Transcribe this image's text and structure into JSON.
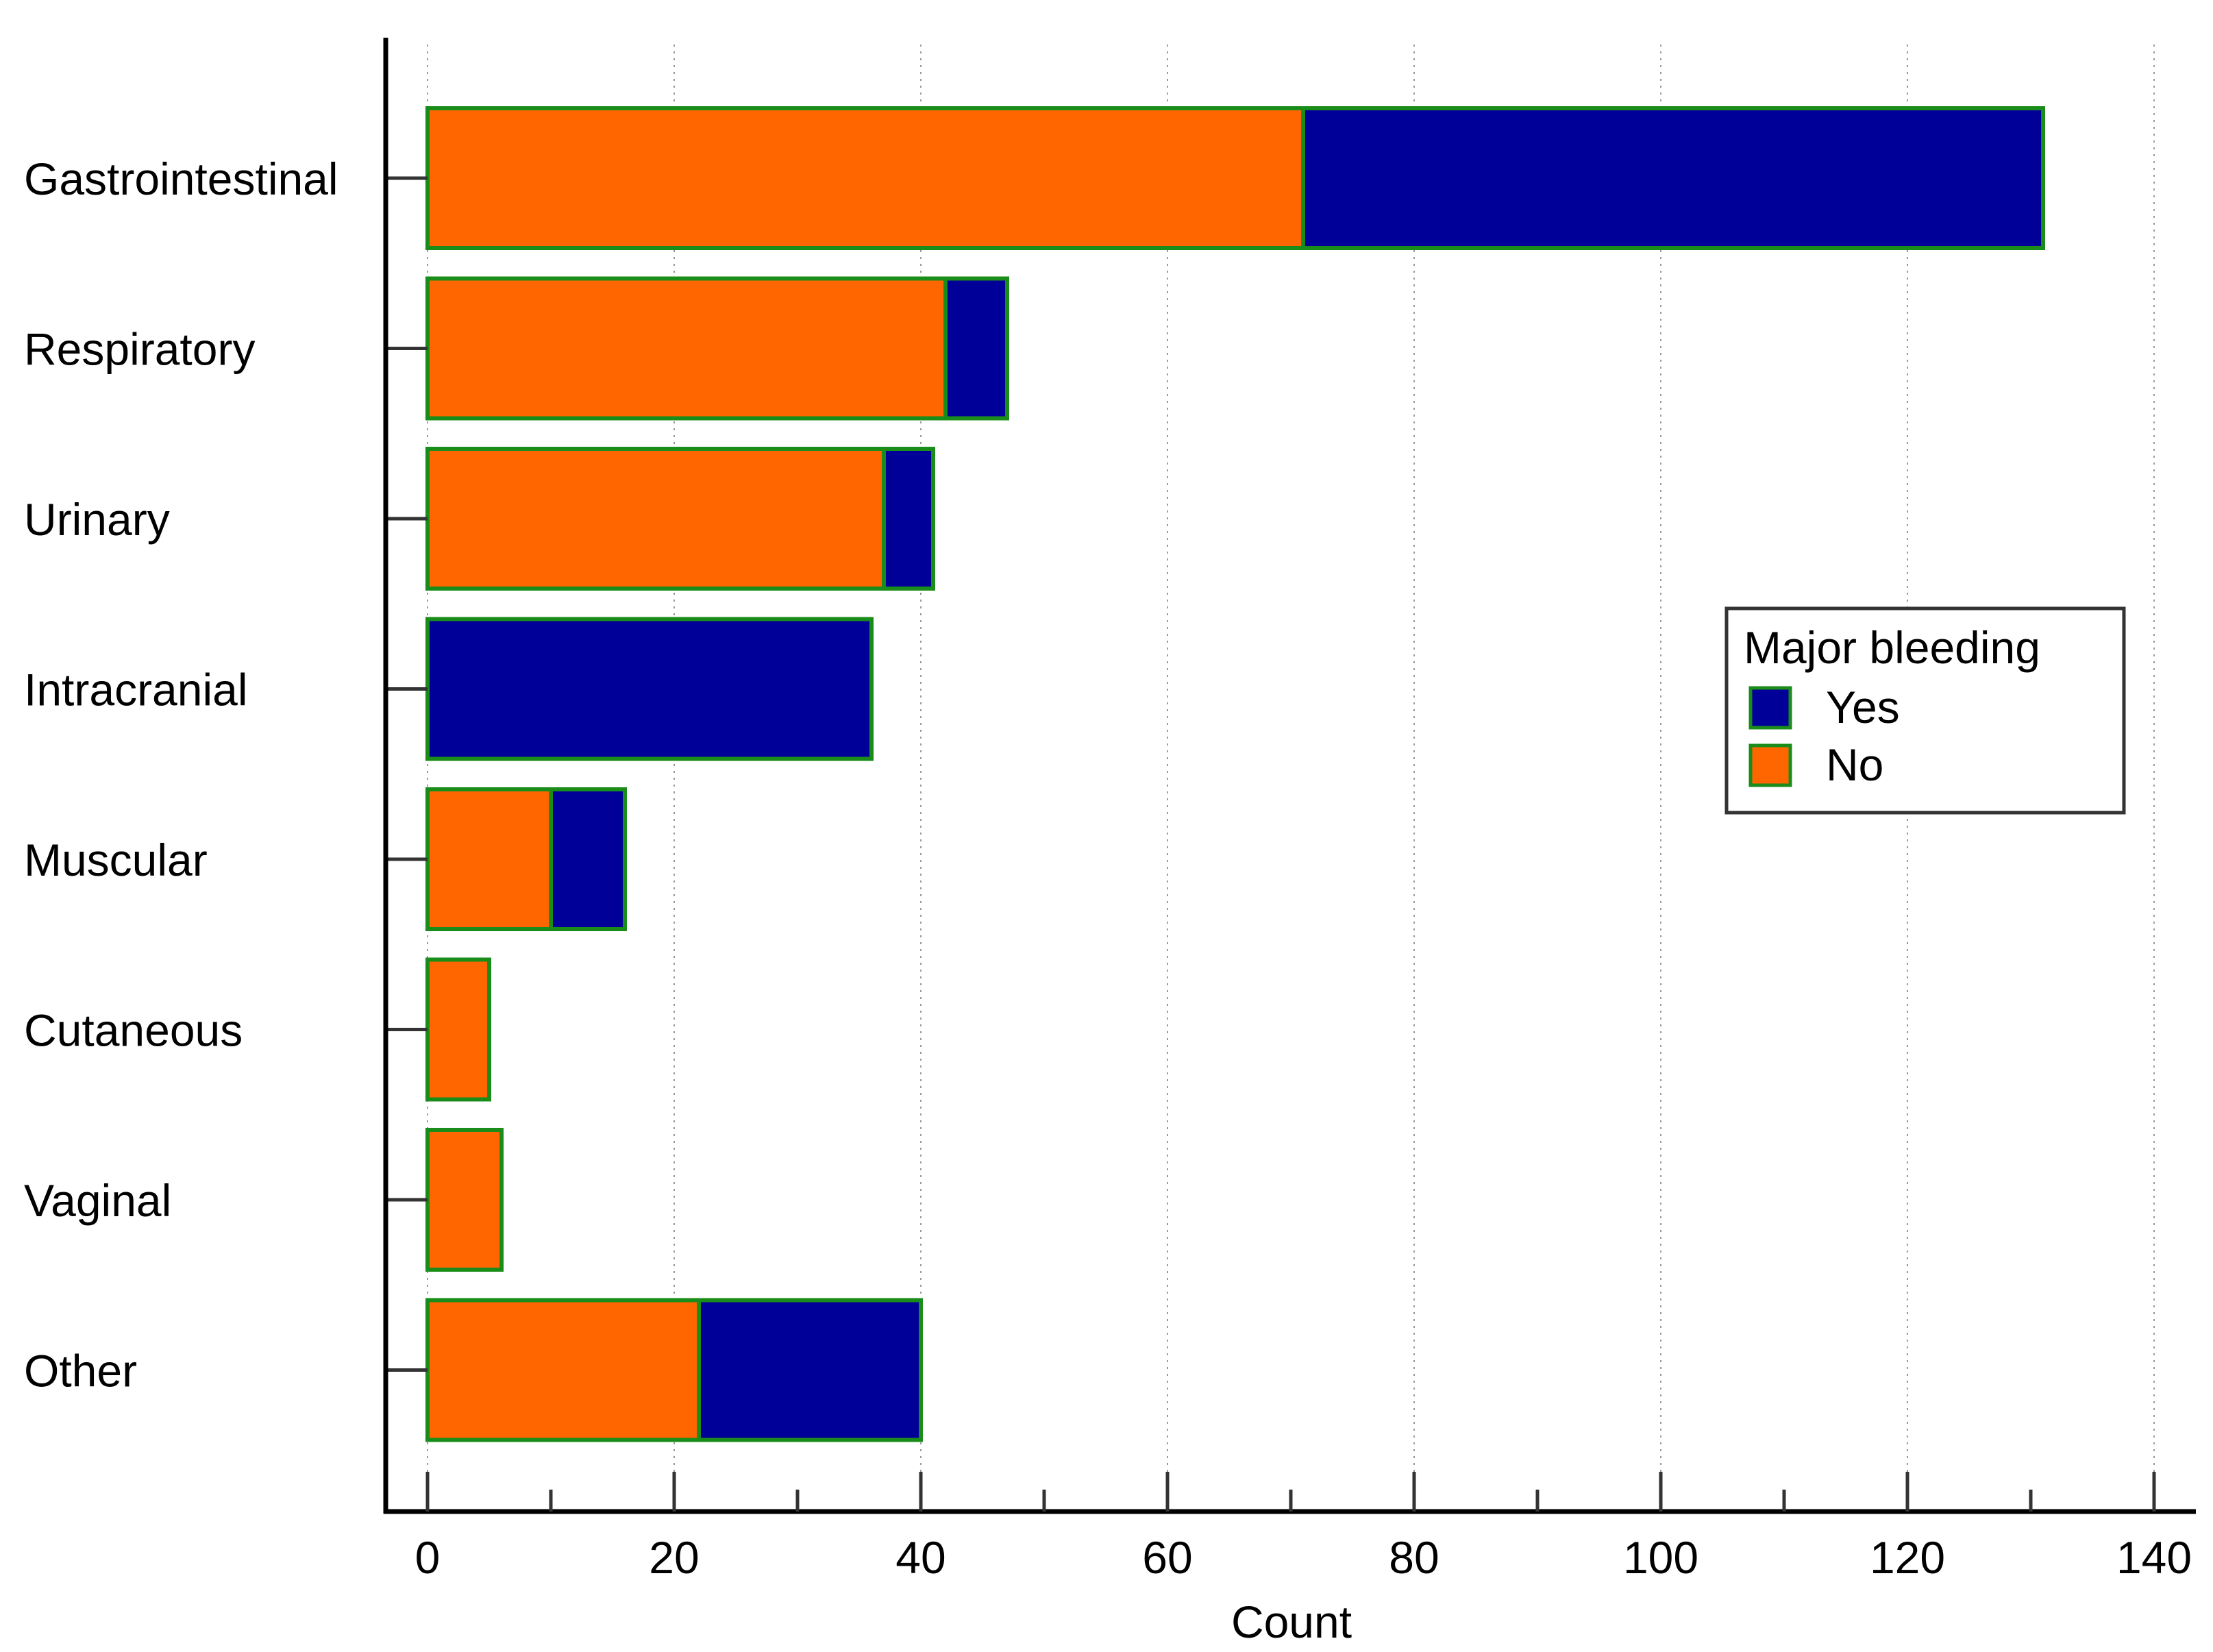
{
  "chart_data": {
    "type": "bar",
    "orientation": "horizontal",
    "stacked": true,
    "categories": [
      "Gastrointestinal",
      "Respiratory",
      "Urinary",
      "Intracranial",
      "Muscular",
      "Cutaneous",
      "Vaginal",
      "Other"
    ],
    "series": [
      {
        "name": "No",
        "color": "#ff6600",
        "values": [
          71,
          42,
          37,
          0,
          10,
          5,
          6,
          22
        ]
      },
      {
        "name": "Yes",
        "color": "#000099",
        "values": [
          60,
          5,
          4,
          36,
          6,
          0,
          0,
          18
        ]
      }
    ],
    "bar_border_color": "#1a8c1a",
    "xlabel": "Count",
    "xlim": [
      0,
      140
    ],
    "x_ticks": [
      "0",
      "20",
      "40",
      "60",
      "80",
      "100",
      "120",
      "140"
    ],
    "x_minor_ticks": [
      10,
      30,
      50,
      70,
      90,
      110,
      130
    ],
    "grid": {
      "vertical": true,
      "style": "dotted"
    },
    "legend": {
      "title": "Major bleeding",
      "placement": "right",
      "entries": [
        {
          "label": "Yes",
          "color": "#000099"
        },
        {
          "label": "No",
          "color": "#ff6600"
        }
      ]
    }
  }
}
